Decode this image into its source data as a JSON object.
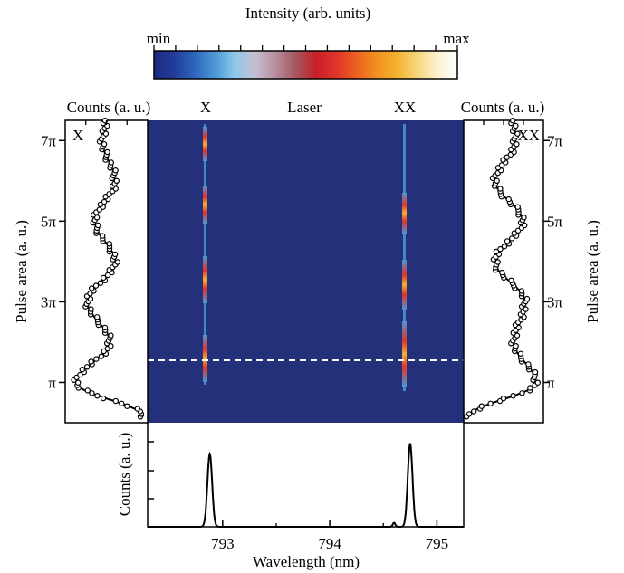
{
  "colorbar": {
    "title": "Intensity (arb. units)",
    "min_label": "min",
    "max_label": "max",
    "colors": [
      "#1d2a80",
      "#233c9a",
      "#2c66bc",
      "#4b97d4",
      "#8ec9ea",
      "#c5c0d2",
      "#b78f9e",
      "#a4575f",
      "#c81f2a",
      "#e0342b",
      "#ec5f20",
      "#f29021",
      "#f3b12e",
      "#f6d67a",
      "#fdf1cf",
      "#ffffff"
    ]
  },
  "chart_data": [
    {
      "id": "map",
      "type": "heatmap",
      "top_labels": [
        "X",
        "Laser",
        "XX"
      ],
      "ylabel_left": "Pulse area (a. u.)",
      "ylabel_right": "Pulse area (a. u.)",
      "yticks": [
        "π",
        "3π",
        "5π",
        "7π"
      ],
      "ylim": [
        0,
        7.5
      ],
      "xlim": [
        792.3,
        795.25
      ],
      "lines_nm": [
        792.88,
        794.75
      ],
      "dashed_line_at": 1,
      "background_color": "#25307a"
    },
    {
      "id": "x_counts",
      "type": "scatter",
      "title": "Counts (a. u.)",
      "corner_label": "X",
      "peaks_at": [
        2,
        4,
        6
      ],
      "dips_at": [
        1,
        3,
        5,
        7
      ]
    },
    {
      "id": "xx_counts",
      "type": "scatter",
      "title": "Counts (a. u.)",
      "corner_label": "XX",
      "peaks_at": [
        3,
        5,
        7
      ],
      "dips_at": [
        1,
        4,
        6
      ]
    },
    {
      "id": "spectrum",
      "type": "line",
      "xlabel": "Wavelength (nm)",
      "ylabel": "Counts (a. u.)",
      "xticks": [
        "793",
        "794",
        "795"
      ],
      "xlim": [
        792.3,
        795.25
      ],
      "peaks": [
        {
          "x": 792.88,
          "y": 0.72
        },
        {
          "x": 794.75,
          "y": 0.82
        },
        {
          "x": 794.6,
          "y": 0.04
        }
      ]
    }
  ]
}
